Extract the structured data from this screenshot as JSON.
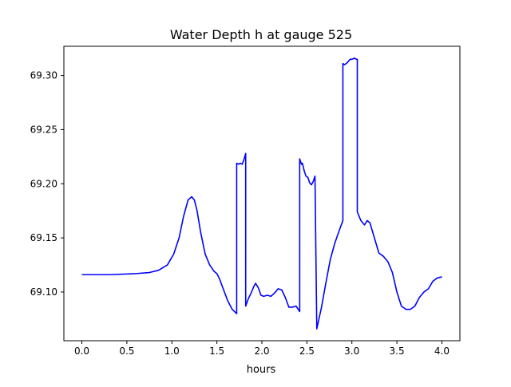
{
  "chart_data": {
    "type": "line",
    "title": "Water Depth h at gauge 525",
    "xlabel": "hours",
    "ylabel": "",
    "xlim": [
      -0.2,
      4.2
    ],
    "ylim": [
      69.055,
      69.327
    ],
    "xticks": [
      0.0,
      0.5,
      1.0,
      1.5,
      2.0,
      2.5,
      3.0,
      3.5,
      4.0
    ],
    "xtick_labels": [
      "0.0",
      "0.5",
      "1.0",
      "1.5",
      "2.0",
      "2.5",
      "3.0",
      "3.5",
      "4.0"
    ],
    "yticks": [
      69.1,
      69.15,
      69.2,
      69.25,
      69.3
    ],
    "ytick_labels": [
      "69.10",
      "69.15",
      "69.20",
      "69.25",
      "69.30"
    ],
    "grid": false,
    "legend": "none",
    "series": [
      {
        "color": "#0000ff",
        "x": [
          0.0,
          0.3,
          0.6,
          0.75,
          0.85,
          0.95,
          1.02,
          1.08,
          1.13,
          1.18,
          1.22,
          1.25,
          1.28,
          1.32,
          1.37,
          1.42,
          1.47,
          1.5,
          1.53,
          1.57,
          1.62,
          1.67,
          1.72,
          1.72,
          1.74,
          1.76,
          1.78,
          1.8,
          1.82,
          1.82,
          1.85,
          1.88,
          1.91,
          1.93,
          1.96,
          1.99,
          2.02,
          2.06,
          2.1,
          2.14,
          2.18,
          2.22,
          2.26,
          2.3,
          2.34,
          2.38,
          2.42,
          2.42,
          2.44,
          2.45,
          2.47,
          2.49,
          2.51,
          2.53,
          2.55,
          2.57,
          2.59,
          2.61,
          2.61,
          2.66,
          2.71,
          2.76,
          2.81,
          2.86,
          2.9,
          2.9,
          2.92,
          2.95,
          2.98,
          3.0,
          3.03,
          3.05,
          3.06,
          3.06,
          3.1,
          3.14,
          3.17,
          3.2,
          3.25,
          3.3,
          3.35,
          3.4,
          3.45,
          3.5,
          3.55,
          3.6,
          3.65,
          3.7,
          3.75,
          3.8,
          3.85,
          3.9,
          3.95,
          4.0
        ],
        "y": [
          69.116,
          69.116,
          69.117,
          69.118,
          69.12,
          69.125,
          69.135,
          69.15,
          69.17,
          69.185,
          69.188,
          69.185,
          69.175,
          69.155,
          69.135,
          69.125,
          69.119,
          69.117,
          69.112,
          69.103,
          69.092,
          69.084,
          69.08,
          69.219,
          69.218,
          69.219,
          69.218,
          69.222,
          69.228,
          69.087,
          69.094,
          69.099,
          69.105,
          69.108,
          69.104,
          69.097,
          69.096,
          69.097,
          69.096,
          69.099,
          69.103,
          69.102,
          69.095,
          69.086,
          69.086,
          69.087,
          69.082,
          69.223,
          69.218,
          69.219,
          69.212,
          69.207,
          69.206,
          69.201,
          69.199,
          69.202,
          69.207,
          69.066,
          69.066,
          69.085,
          69.108,
          69.13,
          69.145,
          69.157,
          69.166,
          69.311,
          69.31,
          69.312,
          69.315,
          69.315,
          69.316,
          69.315,
          69.315,
          69.174,
          69.166,
          69.162,
          69.166,
          69.164,
          69.15,
          69.136,
          69.133,
          69.128,
          69.118,
          69.1,
          69.087,
          69.084,
          69.084,
          69.087,
          69.095,
          69.1,
          69.103,
          69.11,
          69.113,
          69.114
        ]
      }
    ]
  }
}
